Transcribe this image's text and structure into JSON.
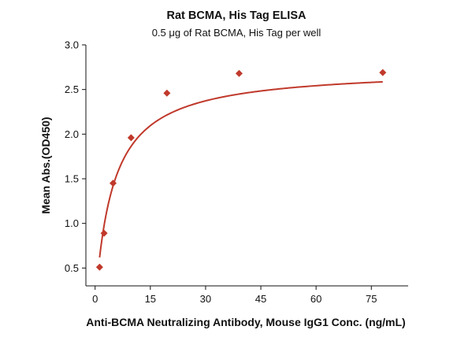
{
  "chart_data": {
    "type": "scatter",
    "title": "Rat BCMA, His Tag ELISA",
    "subtitle": "0.5 μg of Rat BCMA, His Tag per well",
    "xlabel": "Anti-BCMA Neutralizing Antibody, Mouse IgG1 Conc. (ng/mL)",
    "ylabel": "Mean Abs.(OD450)",
    "xlim": [
      -2.5,
      85
    ],
    "ylim": [
      0.3,
      3.0
    ],
    "x_ticks": [
      0,
      15,
      30,
      45,
      60,
      75
    ],
    "y_ticks": [
      0.5,
      1.0,
      1.5,
      2.0,
      2.5,
      3.0
    ],
    "x_tick_labels": [
      "0",
      "15",
      "30",
      "45",
      "60",
      "75"
    ],
    "y_tick_labels": [
      "0.5",
      "1.0",
      "1.5",
      "2.0",
      "2.5",
      "3.0"
    ],
    "grid": false,
    "series": [
      {
        "x": [
          1.22,
          2.44,
          4.88,
          9.77,
          19.5,
          39.1,
          78.1
        ],
        "y": [
          0.51,
          0.89,
          1.45,
          1.96,
          2.46,
          2.68,
          2.69
        ],
        "marker": "diamond",
        "color": "#c0392b"
      }
    ],
    "fit_curve": {
      "type": "hyperbolic",
      "color": "#c0392b",
      "bottom": 0.08,
      "top": 2.74,
      "ec50": 4.8
    }
  }
}
